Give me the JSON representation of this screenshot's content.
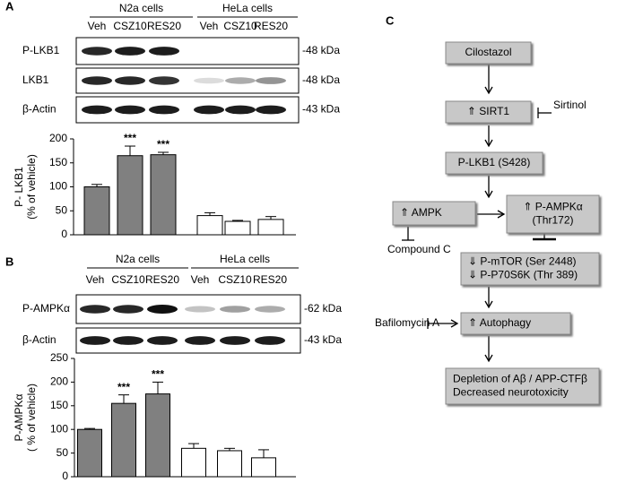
{
  "panels": {
    "a": "A",
    "b": "B",
    "c": "C"
  },
  "blots": [
    {
      "groups": [
        "N2a cells",
        "HeLa cells"
      ],
      "rows": [
        {
          "label": "P-LKB1",
          "size": "-48 kDa"
        },
        {
          "label": "LKB1",
          "size": "-48 kDa"
        },
        {
          "label": "β-Actin",
          "size": "-43 kDa"
        }
      ]
    },
    {
      "groups": [
        "N2a cells",
        "HeLa cells"
      ],
      "rows": [
        {
          "label": "P-AMPKα",
          "size": "-62 kDa"
        },
        {
          "label": "β-Actin",
          "size": "-43 kDa"
        }
      ]
    }
  ],
  "chart_data": [
    {
      "type": "bar",
      "ylabel": [
        "P- LKB1",
        "(% of vehicle)"
      ],
      "categories": [
        "Veh",
        "CSZ10",
        "RES20",
        "Veh",
        "CSZ10",
        "RES20"
      ],
      "values": [
        100,
        165,
        167,
        40,
        28,
        32
      ],
      "errors": [
        5,
        20,
        5,
        6,
        2,
        6
      ],
      "significance": [
        null,
        "***",
        "***",
        null,
        null,
        null
      ],
      "colors": [
        "#808080",
        "#808080",
        "#808080",
        "#ffffff",
        "#ffffff",
        "#ffffff"
      ],
      "ylim": [
        0,
        200
      ],
      "yticks": [
        0,
        50,
        100,
        150,
        200
      ]
    },
    {
      "type": "bar",
      "ylabel": [
        "P-AMPKα",
        "( % of vehicle)"
      ],
      "categories": [
        "Veh",
        "CSZ10",
        "RES20",
        "Veh",
        "CSZ10",
        "RES20"
      ],
      "values": [
        100,
        155,
        175,
        60,
        55,
        40
      ],
      "errors": [
        2,
        18,
        25,
        10,
        5,
        17
      ],
      "significance": [
        null,
        "***",
        "***",
        null,
        null,
        null
      ],
      "colors": [
        "#808080",
        "#808080",
        "#808080",
        "#ffffff",
        "#ffffff",
        "#ffffff"
      ],
      "ylim": [
        0,
        250
      ],
      "yticks": [
        0,
        50,
        100,
        150,
        200,
        250
      ]
    }
  ],
  "diagram": {
    "nodes": [
      {
        "lines": [
          "Cilostazol"
        ]
      },
      {
        "lines": [
          "⇑ SIRT1"
        ]
      },
      {
        "lines": [
          "P-LKB1 (S428)"
        ]
      },
      {
        "lines": [
          "⇑ AMPK"
        ]
      },
      {
        "lines": [
          "⇑ P-AMPKα",
          "(Thr172)"
        ]
      },
      {
        "lines": [
          "⇓ P-mTOR (Ser 2448)",
          "⇓ P-P70S6K (Thr 389)"
        ]
      },
      {
        "lines": [
          "⇑ Autophagy"
        ]
      },
      {
        "lines": [
          "Depletion of Aβ / APP-CTFβ",
          "Decreased neurotoxicity"
        ]
      }
    ],
    "inhibitors": [
      "Sirtinol",
      "Compound C",
      "Bafilomycin A"
    ]
  }
}
